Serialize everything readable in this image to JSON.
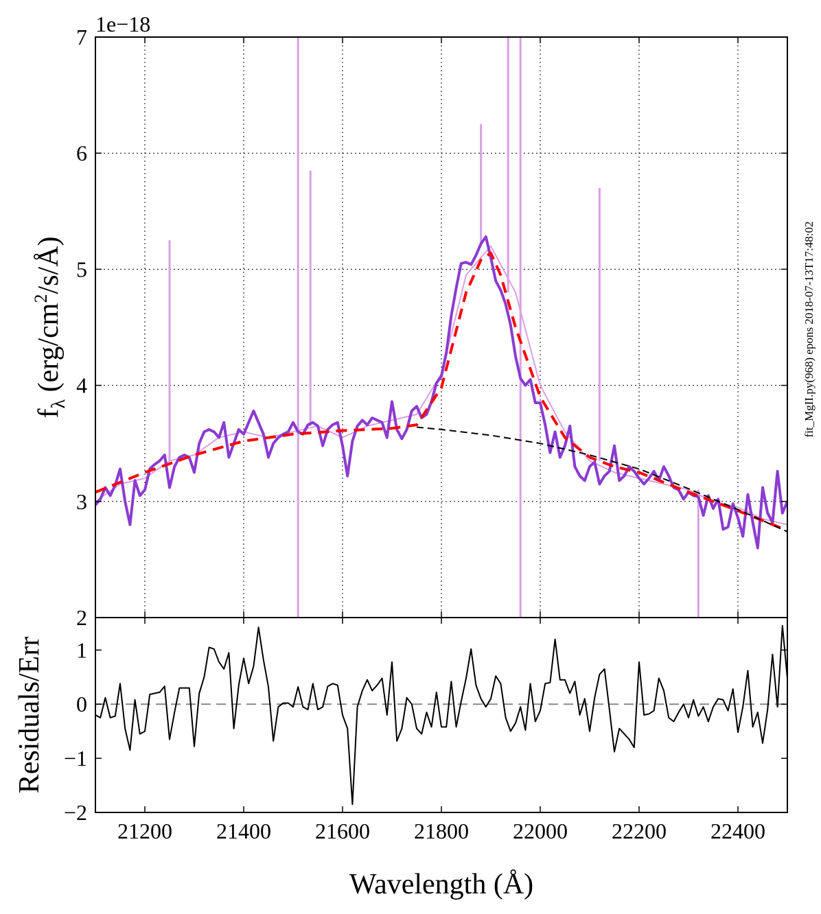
{
  "chart_data": [
    {
      "type": "line",
      "panel": "top",
      "title": "",
      "ylabel": "fλ (erg/cm²/s/Å)",
      "ylabel_parts": {
        "f": "f",
        "sub": "λ",
        "pre": " (erg/cm",
        "sup": "2",
        "post": "/s/Å)"
      },
      "offset_text": "1e−18",
      "xlim": [
        21100,
        22500
      ],
      "ylim": [
        2,
        7
      ],
      "grid": true,
      "xticks": [
        21200,
        21400,
        21600,
        21800,
        22000,
        22200,
        22400
      ],
      "xtick_labels": [
        "",
        "",
        "",
        "",
        "",
        "",
        ""
      ],
      "yticks": [
        2,
        3,
        4,
        5,
        6,
        7
      ],
      "ytick_labels": [
        "2",
        "3",
        "4",
        "5",
        "6",
        "7"
      ],
      "series": [
        {
          "name": "spectrum (raw)",
          "color": "#d9a0e3",
          "style": "solid",
          "x": [
            21100,
            21150,
            21200,
            21250,
            21300,
            21350,
            21400,
            21450,
            21500,
            21550,
            21600,
            21650,
            21700,
            21750,
            21800,
            21850,
            21900,
            21950,
            22000,
            22050,
            22100,
            22150,
            22200,
            22250,
            22300,
            22350,
            22400,
            22450,
            22500
          ],
          "y": [
            3.0,
            3.15,
            3.2,
            3.35,
            3.4,
            3.55,
            3.6,
            3.55,
            3.6,
            3.65,
            3.55,
            3.65,
            3.7,
            3.75,
            4.1,
            4.95,
            5.2,
            4.8,
            4.0,
            3.6,
            3.35,
            3.25,
            3.2,
            3.15,
            3.1,
            3.0,
            2.95,
            2.85,
            2.8
          ],
          "spikes": [
            {
              "x": 21510,
              "y": 7.0
            },
            {
              "x": 21510,
              "y": 2.0
            },
            {
              "x": 21535,
              "y": 5.85
            },
            {
              "x": 21935,
              "y": 7.0
            },
            {
              "x": 21960,
              "y": 7.0
            },
            {
              "x": 21960,
              "y": 2.0
            },
            {
              "x": 21250,
              "y": 5.25
            },
            {
              "x": 22120,
              "y": 5.7
            },
            {
              "x": 21880,
              "y": 6.25
            },
            {
              "x": 22320,
              "y": 2.0
            }
          ]
        },
        {
          "name": "spectrum (binned)",
          "color": "#8a3bd1",
          "style": "solid",
          "x": [
            21100,
            21110,
            21120,
            21130,
            21140,
            21150,
            21160,
            21170,
            21180,
            21190,
            21200,
            21210,
            21220,
            21230,
            21240,
            21250,
            21260,
            21270,
            21280,
            21290,
            21300,
            21310,
            21320,
            21330,
            21340,
            21350,
            21360,
            21370,
            21380,
            21390,
            21400,
            21410,
            21420,
            21430,
            21440,
            21450,
            21460,
            21470,
            21480,
            21490,
            21500,
            21510,
            21520,
            21530,
            21540,
            21550,
            21560,
            21570,
            21580,
            21590,
            21600,
            21610,
            21620,
            21630,
            21640,
            21650,
            21660,
            21670,
            21680,
            21690,
            21700,
            21710,
            21720,
            21730,
            21740,
            21750,
            21760,
            21770,
            21780,
            21790,
            21800,
            21810,
            21820,
            21830,
            21840,
            21850,
            21860,
            21870,
            21880,
            21890,
            21900,
            21910,
            21920,
            21930,
            21940,
            21950,
            21960,
            21970,
            21980,
            21990,
            22000,
            22010,
            22020,
            22030,
            22040,
            22050,
            22060,
            22070,
            22080,
            22090,
            22100,
            22110,
            22120,
            22130,
            22140,
            22150,
            22160,
            22170,
            22180,
            22190,
            22200,
            22210,
            22220,
            22230,
            22240,
            22250,
            22260,
            22270,
            22280,
            22290,
            22300,
            22310,
            22320,
            22330,
            22340,
            22350,
            22360,
            22370,
            22380,
            22390,
            22400,
            22410,
            22420,
            22430,
            22440,
            22450,
            22460,
            22470,
            22480,
            22490,
            22500
          ],
          "y": [
            2.97,
            3.02,
            3.12,
            3.05,
            3.14,
            3.28,
            3.0,
            2.8,
            3.18,
            3.05,
            3.1,
            3.28,
            3.32,
            3.35,
            3.4,
            3.12,
            3.3,
            3.38,
            3.4,
            3.38,
            3.25,
            3.5,
            3.6,
            3.62,
            3.6,
            3.55,
            3.68,
            3.38,
            3.5,
            3.62,
            3.58,
            3.68,
            3.78,
            3.68,
            3.58,
            3.38,
            3.5,
            3.55,
            3.58,
            3.6,
            3.68,
            3.6,
            3.58,
            3.66,
            3.68,
            3.65,
            3.48,
            3.62,
            3.66,
            3.68,
            3.48,
            3.22,
            3.52,
            3.65,
            3.7,
            3.66,
            3.72,
            3.7,
            3.68,
            3.55,
            3.86,
            3.62,
            3.54,
            3.62,
            3.78,
            3.82,
            3.72,
            3.75,
            3.86,
            4.02,
            4.08,
            4.28,
            4.6,
            4.84,
            5.05,
            5.06,
            5.04,
            5.12,
            5.22,
            5.28,
            5.1,
            4.9,
            4.82,
            4.7,
            4.52,
            4.25,
            4.06,
            4.0,
            4.05,
            3.85,
            3.85,
            3.66,
            3.42,
            3.6,
            3.38,
            3.48,
            3.65,
            3.3,
            3.22,
            3.18,
            3.3,
            3.34,
            3.15,
            3.22,
            3.26,
            3.48,
            3.18,
            3.22,
            3.3,
            3.26,
            3.2,
            3.15,
            3.2,
            3.26,
            3.18,
            3.3,
            3.22,
            3.12,
            3.1,
            3.02,
            3.08,
            3.05,
            3.04,
            2.88,
            3.05,
            2.94,
            3.02,
            2.76,
            2.78,
            2.98,
            2.86,
            2.7,
            3.06,
            2.82,
            2.6,
            3.12,
            2.9,
            2.82,
            3.26,
            2.9,
            3.0
          ],
          "linewidth": 4
        },
        {
          "name": "total model fit",
          "color": "#ff0000",
          "style": "dashed",
          "x": [
            21100,
            21200,
            21300,
            21400,
            21500,
            21600,
            21700,
            21750,
            21800,
            21850,
            21880,
            21900,
            21920,
            21950,
            22000,
            22050,
            22100,
            22150,
            22200,
            22300,
            22400,
            22500
          ],
          "y": [
            3.08,
            3.25,
            3.4,
            3.52,
            3.58,
            3.61,
            3.63,
            3.66,
            3.98,
            4.8,
            5.08,
            5.14,
            4.95,
            4.5,
            3.9,
            3.55,
            3.38,
            3.3,
            3.25,
            3.08,
            2.92,
            2.75
          ],
          "linewidth": 4
        },
        {
          "name": "continuum",
          "color": "#000000",
          "style": "dashed",
          "x": [
            21750,
            21800,
            21900,
            22000,
            22100,
            22200,
            22300,
            22400,
            22500
          ],
          "y": [
            3.64,
            3.62,
            3.57,
            3.5,
            3.4,
            3.28,
            3.11,
            2.93,
            2.74
          ],
          "linewidth": 2
        }
      ]
    },
    {
      "type": "line",
      "panel": "bottom",
      "title": "",
      "xlabel": "Wavelength (Å)",
      "ylabel": "Residuals/Err",
      "xlim": [
        21100,
        22500
      ],
      "ylim": [
        -2,
        1.6
      ],
      "grid": false,
      "xticks": [
        21200,
        21400,
        21600,
        21800,
        22000,
        22200,
        22400
      ],
      "xtick_labels": [
        "21200",
        "21400",
        "21600",
        "21800",
        "22000",
        "22200",
        "22400"
      ],
      "yticks": [
        -2,
        -1,
        0,
        1
      ],
      "ytick_labels": [
        "−2",
        "−1",
        "0",
        "1"
      ],
      "zero_line": {
        "y": 0,
        "color": "#888888",
        "style": "dashed"
      },
      "series": [
        {
          "name": "residuals",
          "color": "#000000",
          "style": "solid",
          "x": [
            21100,
            21110,
            21120,
            21130,
            21140,
            21150,
            21160,
            21170,
            21180,
            21190,
            21200,
            21210,
            21220,
            21230,
            21240,
            21250,
            21260,
            21270,
            21280,
            21290,
            21300,
            21310,
            21320,
            21330,
            21340,
            21350,
            21360,
            21370,
            21380,
            21390,
            21400,
            21410,
            21420,
            21430,
            21440,
            21450,
            21460,
            21470,
            21480,
            21490,
            21500,
            21510,
            21520,
            21530,
            21540,
            21550,
            21560,
            21570,
            21580,
            21590,
            21600,
            21610,
            21620,
            21630,
            21640,
            21650,
            21660,
            21670,
            21680,
            21690,
            21700,
            21710,
            21720,
            21730,
            21740,
            21750,
            21760,
            21770,
            21780,
            21790,
            21800,
            21810,
            21820,
            21830,
            21840,
            21850,
            21860,
            21870,
            21880,
            21890,
            21900,
            21910,
            21920,
            21930,
            21940,
            21950,
            21960,
            21970,
            21980,
            21990,
            22000,
            22010,
            22020,
            22030,
            22040,
            22050,
            22060,
            22070,
            22080,
            22090,
            22100,
            22110,
            22120,
            22130,
            22140,
            22150,
            22160,
            22170,
            22180,
            22190,
            22200,
            22210,
            22220,
            22230,
            22240,
            22250,
            22260,
            22270,
            22280,
            22290,
            22300,
            22310,
            22320,
            22330,
            22340,
            22350,
            22360,
            22370,
            22380,
            22390,
            22400,
            22410,
            22420,
            22430,
            22440,
            22450,
            22460,
            22470,
            22480,
            22490,
            22500
          ],
          "y": [
            -0.2,
            -0.25,
            0.12,
            -0.25,
            -0.22,
            0.38,
            -0.45,
            -0.85,
            0.08,
            -0.55,
            -0.5,
            0.18,
            0.2,
            0.22,
            0.33,
            -0.65,
            -0.15,
            0.3,
            0.3,
            0.3,
            -0.78,
            0.2,
            0.5,
            1.05,
            1.02,
            0.78,
            0.65,
            0.95,
            -0.45,
            0.35,
            0.85,
            0.38,
            0.7,
            1.42,
            0.82,
            0.32,
            -0.68,
            -0.05,
            0.02,
            0.02,
            -0.05,
            0.32,
            -0.05,
            -0.1,
            0.38,
            -0.1,
            -0.05,
            0.33,
            0.38,
            0.35,
            -0.2,
            -0.45,
            -1.85,
            -0.05,
            0.25,
            0.45,
            0.25,
            0.35,
            0.48,
            -0.2,
            0.78,
            -0.68,
            -0.45,
            0.12,
            0.0,
            -0.45,
            -0.55,
            -0.15,
            -0.42,
            0.22,
            -0.42,
            -0.42,
            0.42,
            -0.42,
            0.05,
            0.48,
            1.02,
            0.35,
            0.1,
            -0.05,
            0.1,
            0.52,
            0.38,
            -0.25,
            -0.5,
            -0.35,
            -0.05,
            -0.48,
            0.38,
            -0.32,
            -0.12,
            0.38,
            0.4,
            1.2,
            0.45,
            0.45,
            0.2,
            0.42,
            -0.2,
            0.1,
            -0.5,
            0.12,
            0.55,
            0.65,
            -0.1,
            -0.88,
            -0.45,
            -0.55,
            -0.65,
            -0.8,
            0.78,
            -0.2,
            -0.18,
            -0.12,
            0.48,
            0.25,
            -0.25,
            -0.32,
            -0.15,
            0.0,
            -0.25,
            0.08,
            -0.22,
            -0.05,
            -0.32,
            -0.05,
            0.1,
            0.08,
            -0.12,
            0.28,
            -0.52,
            -0.05,
            0.62,
            -0.42,
            -0.15,
            -0.72,
            -0.1,
            0.92,
            -0.05,
            1.45,
            0.48
          ],
          "linewidth": 2
        }
      ]
    }
  ],
  "side_label": "fit_MgII.py(968) epons 2018-07-13T17:48:02"
}
